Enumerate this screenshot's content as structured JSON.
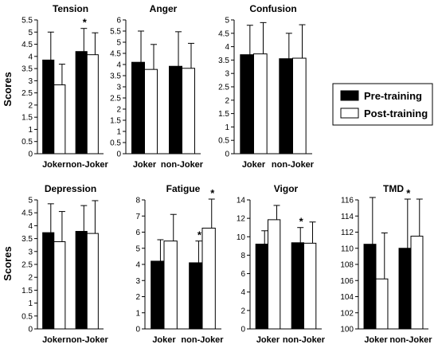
{
  "legend": {
    "items": [
      {
        "label": "Pre-training",
        "color": "#000000"
      },
      {
        "label": "Post-training",
        "color": "#ffffff"
      }
    ]
  },
  "y_axis_label": "Scores",
  "chart_data": [
    {
      "type": "bar",
      "title": "Tension",
      "categories": [
        "Joker",
        "non-Joker"
      ],
      "ylim": [
        0,
        5.5
      ],
      "yticks": [
        0,
        0.5,
        1,
        1.5,
        2,
        2.5,
        3,
        3.5,
        4,
        4.5,
        5,
        5.5
      ],
      "ylabel": "Scores",
      "series": [
        {
          "name": "Pre-training",
          "values": [
            3.85,
            4.2
          ],
          "errors": [
            1.15,
            0.95
          ]
        },
        {
          "name": "Post-training",
          "values": [
            2.83,
            4.07
          ],
          "errors": [
            0.85,
            0.9
          ]
        }
      ],
      "significant": [
        false,
        false,
        true,
        false
      ]
    },
    {
      "type": "bar",
      "title": "Anger",
      "categories": [
        "Joker",
        "non-Joker"
      ],
      "ylim": [
        0,
        6
      ],
      "yticks": [
        0,
        0.5,
        1,
        1.5,
        2,
        2.5,
        3,
        3.5,
        4,
        4.5,
        5,
        5.5,
        6
      ],
      "ylabel": "",
      "series": [
        {
          "name": "Pre-training",
          "values": [
            4.1,
            3.92
          ],
          "errors": [
            1.4,
            1.55
          ]
        },
        {
          "name": "Post-training",
          "values": [
            3.78,
            3.83
          ],
          "errors": [
            1.12,
            1.12
          ]
        }
      ],
      "significant": [
        false,
        false,
        false,
        false
      ]
    },
    {
      "type": "bar",
      "title": "Confusion",
      "categories": [
        "Joker",
        "non-Joker"
      ],
      "ylim": [
        0,
        5
      ],
      "yticks": [
        0,
        0.5,
        1,
        1.5,
        2,
        2.5,
        3,
        3.5,
        4,
        4.5,
        5
      ],
      "ylabel": "",
      "series": [
        {
          "name": "Pre-training",
          "values": [
            3.7,
            3.55
          ],
          "errors": [
            1.1,
            0.95
          ]
        },
        {
          "name": "Post-training",
          "values": [
            3.73,
            3.57
          ],
          "errors": [
            1.17,
            1.25
          ]
        }
      ],
      "significant": [
        false,
        false,
        false,
        false
      ]
    },
    {
      "type": "bar",
      "title": "Depression",
      "categories": [
        "Joker",
        "non-Joker"
      ],
      "ylim": [
        0,
        5
      ],
      "yticks": [
        0,
        0.5,
        1,
        1.5,
        2,
        2.5,
        3,
        3.5,
        4,
        4.5,
        5
      ],
      "ylabel": "Scores",
      "series": [
        {
          "name": "Pre-training",
          "values": [
            3.73,
            3.78
          ],
          "errors": [
            1.12,
            1.0
          ]
        },
        {
          "name": "Post-training",
          "values": [
            3.38,
            3.7
          ],
          "errors": [
            1.17,
            1.27
          ]
        }
      ],
      "significant": [
        false,
        false,
        false,
        false
      ]
    },
    {
      "type": "bar",
      "title": "Fatigue",
      "categories": [
        "Joker",
        "non-Joker"
      ],
      "ylim": [
        0,
        8
      ],
      "yticks": [
        0,
        1,
        2,
        3,
        4,
        5,
        6,
        7,
        8
      ],
      "ylabel": "",
      "series": [
        {
          "name": "Pre-training",
          "values": [
            4.2,
            4.1
          ],
          "errors": [
            1.33,
            1.35
          ]
        },
        {
          "name": "Post-training",
          "values": [
            5.45,
            6.25
          ],
          "errors": [
            1.65,
            1.8
          ]
        }
      ],
      "significant": [
        false,
        false,
        true,
        true
      ]
    },
    {
      "type": "bar",
      "title": "Vigor",
      "categories": [
        "Joker",
        "non-Joker"
      ],
      "ylim": [
        0,
        14
      ],
      "yticks": [
        0,
        2,
        4,
        6,
        8,
        10,
        12,
        14
      ],
      "ylabel": "",
      "series": [
        {
          "name": "Pre-training",
          "values": [
            9.2,
            9.35
          ],
          "errors": [
            1.45,
            1.65
          ]
        },
        {
          "name": "Post-training",
          "values": [
            11.85,
            9.3
          ],
          "errors": [
            1.55,
            2.3
          ]
        }
      ],
      "significant": [
        false,
        false,
        true,
        false
      ]
    },
    {
      "type": "bar",
      "title": "TMD",
      "categories": [
        "Joker",
        "non-Joker"
      ],
      "ylim": [
        100,
        116
      ],
      "yticks": [
        100,
        102,
        104,
        106,
        108,
        110,
        112,
        114,
        116
      ],
      "ylabel": "",
      "series": [
        {
          "name": "Pre-training",
          "values": [
            110.5,
            110.0
          ],
          "errors": [
            5.8,
            6.1
          ]
        },
        {
          "name": "Post-training",
          "values": [
            106.2,
            111.5
          ],
          "errors": [
            5.7,
            4.6
          ]
        }
      ],
      "significant": [
        false,
        false,
        true,
        false
      ]
    }
  ]
}
